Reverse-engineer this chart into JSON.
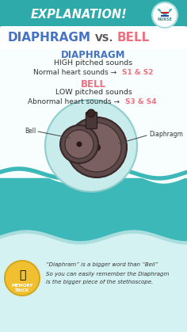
{
  "bg_teal": "#3db8b8",
  "bg_teal_dark": "#2eaaaa",
  "bg_white": "#ffffff",
  "bg_light": "#e8f8f8",
  "explanation_text": "EXPLANATION!",
  "explanation_color": "#ffffff",
  "main_title_blue": "DIAPHRAGM",
  "main_title_vs": "VS.",
  "main_title_pink": "BELL",
  "main_blue": "#4472c4",
  "main_pink": "#f07080",
  "section1_title": "DIAPHRAGM",
  "section1_line1": "HIGH pitched sounds",
  "section1_line2_pre": "Normal heart sounds → ",
  "section1_s12": "S1 & S2",
  "section2_title": "BELL",
  "section2_line1": "LOW pitched sounds",
  "section2_line2_pre": "Abnormal heart sounds → ",
  "section2_s34": "S3 & S4",
  "bell_label": "Bell",
  "diaphragm_label": "Diaphragm",
  "memory_line1": "“Diaphram” is a bigger word than “Bell”",
  "memory_line2": "So you can easily remember the Diaphragm",
  "memory_line3": "is the bigger piece of the stethoscope.",
  "stethoscope_outer_fill": "#c8ecec",
  "stethoscope_outer_edge": "#90cccc",
  "stethoscope_body": "#5c4848",
  "stethoscope_mid": "#7a6060",
  "stethoscope_edge": "#3a2828",
  "text_dark": "#333333",
  "memory_bg": "#e0f5f5"
}
